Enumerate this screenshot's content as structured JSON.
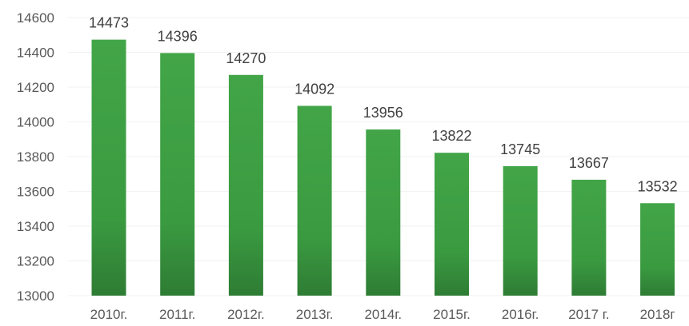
{
  "chart_data": {
    "type": "bar",
    "categories": [
      "2010г.",
      "2011г.",
      "2012г.",
      "2013г.",
      "2014г.",
      "2015г.",
      "2016г.",
      "2017 г.",
      "2018г"
    ],
    "values": [
      14473,
      14396,
      14270,
      14092,
      13956,
      13822,
      13745,
      13667,
      13532
    ],
    "data_labels": [
      "14473",
      "14396",
      "14270",
      "14092",
      "13956",
      "13822",
      "13745",
      "13667",
      "13532"
    ],
    "title": "",
    "xlabel": "",
    "ylabel": "",
    "ylim": [
      13000,
      14600
    ],
    "yticks": [
      13000,
      13200,
      13400,
      13600,
      13800,
      14000,
      14200,
      14400,
      14600
    ],
    "ytick_labels": [
      "13000",
      "13200",
      "13400",
      "13600",
      "13800",
      "14000",
      "14200",
      "14400",
      "14600"
    ],
    "grid": true,
    "legend": "none",
    "colors": {
      "bar_top": "#42a547",
      "bar_bottom": "#2e7c34"
    }
  }
}
